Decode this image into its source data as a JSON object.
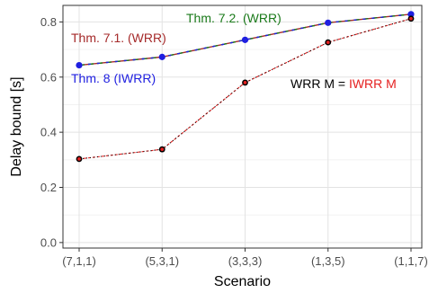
{
  "chart_data": {
    "type": "line",
    "xlabel": "Scenario",
    "ylabel": "Delay bound [s]",
    "categories": [
      "(7,1,1)",
      "(5,3,1)",
      "(3,3,3)",
      "(1,3,5)",
      "(1,1,7)"
    ],
    "ylim": [
      -0.02,
      0.86
    ],
    "yticks": [
      0.0,
      0.2,
      0.4,
      0.6,
      0.8
    ],
    "ytick_labels": [
      "0.0",
      "0.2",
      "0.4",
      "0.6",
      "0.8"
    ],
    "grid": true,
    "series": [
      {
        "name": "Thm. 7.1. (WRR)",
        "color": "#a52a2a",
        "values": [
          0.643,
          0.673,
          0.735,
          0.797,
          0.828
        ]
      },
      {
        "name": "Thm. 7.2. (WRR)",
        "color": "#1a7a1a",
        "values": [
          0.643,
          0.673,
          0.735,
          0.797,
          0.828
        ]
      },
      {
        "name": "Thm. 8 (IWRR)",
        "color": "#1f1fe0",
        "values": [
          0.643,
          0.673,
          0.735,
          0.797,
          0.828
        ]
      },
      {
        "name": "WRR M",
        "color": "#000000",
        "values": [
          0.303,
          0.338,
          0.58,
          0.726,
          0.812
        ]
      },
      {
        "name": "IWRR M",
        "color": "#e52020",
        "values": [
          0.303,
          0.338,
          0.58,
          0.726,
          0.812
        ]
      }
    ],
    "annotations": [
      {
        "text": "Thm. 7.2. (WRR)",
        "color": "#1a7a1a"
      },
      {
        "text": "Thm. 7.1. (WRR)",
        "color": "#a52a2a"
      },
      {
        "text": "Thm. 8 (IWRR)",
        "color": "#1f1fe0"
      },
      {
        "text": "WRR M = ",
        "color": "#000000"
      },
      {
        "text": "IWRR M",
        "color": "#e52020"
      }
    ]
  }
}
